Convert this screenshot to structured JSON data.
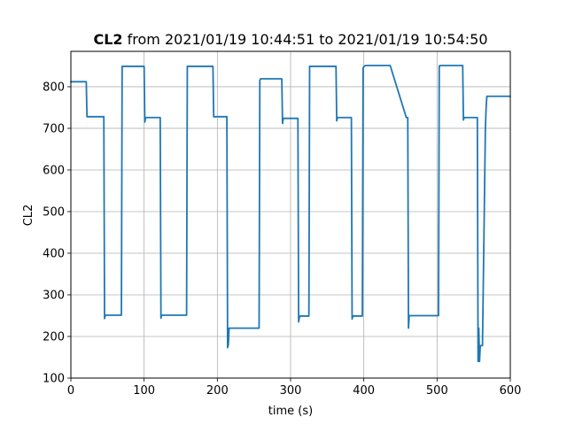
{
  "chart_data": {
    "type": "line",
    "title_bold": "CL2",
    "title_rest": " from 2021/01/19 10:44:51 to 2021/01/19 10:54:50",
    "xlabel": "time (s)",
    "ylabel": "CL2",
    "xlim": [
      0,
      600
    ],
    "ylim": [
      100,
      885
    ],
    "x_ticks": [
      0,
      100,
      200,
      300,
      400,
      500,
      600
    ],
    "y_ticks": [
      100,
      200,
      300,
      400,
      500,
      600,
      700,
      800
    ],
    "grid": true,
    "line_color": "#1f77b4",
    "series": [
      {
        "x": [
          0,
          21,
          22,
          23,
          45,
          46,
          47,
          48,
          69,
          70,
          71,
          72,
          100,
          101,
          102,
          103,
          122,
          123,
          124,
          125,
          158,
          159,
          160,
          161,
          194,
          195,
          196,
          213,
          214,
          215,
          216,
          217,
          218,
          220,
          257,
          258,
          259,
          260,
          288,
          289,
          290,
          291,
          310,
          311,
          312,
          313,
          314,
          315,
          325,
          326,
          327,
          328,
          362,
          363,
          364,
          365,
          383,
          384,
          385,
          386,
          398,
          399,
          400,
          401,
          403,
          420,
          436,
          458,
          459,
          460,
          461,
          462,
          502,
          503,
          504,
          505,
          508,
          535,
          536,
          537,
          538,
          550,
          555,
          556,
          557,
          558,
          559,
          560,
          561,
          562,
          566,
          567,
          568,
          569,
          570,
          600
        ],
        "y": [
          812,
          812,
          728,
          728,
          728,
          243,
          251,
          251,
          251,
          849,
          849,
          849,
          849,
          715,
          726,
          726,
          726,
          244,
          251,
          251,
          251,
          849,
          849,
          849,
          849,
          728,
          728,
          728,
          173,
          180,
          220,
          220,
          220,
          220,
          220,
          815,
          819,
          819,
          819,
          712,
          724,
          724,
          724,
          235,
          246,
          249,
          249,
          249,
          249,
          849,
          849,
          849,
          849,
          718,
          726,
          726,
          726,
          242,
          249,
          249,
          249,
          845,
          848,
          850,
          851,
          851,
          851,
          726,
          726,
          726,
          220,
          250,
          250,
          850,
          850,
          851,
          851,
          851,
          720,
          726,
          726,
          726,
          726,
          140,
          220,
          140,
          178,
          178,
          178,
          178,
          700,
          750,
          777,
          777,
          777,
          777
        ]
      }
    ]
  }
}
